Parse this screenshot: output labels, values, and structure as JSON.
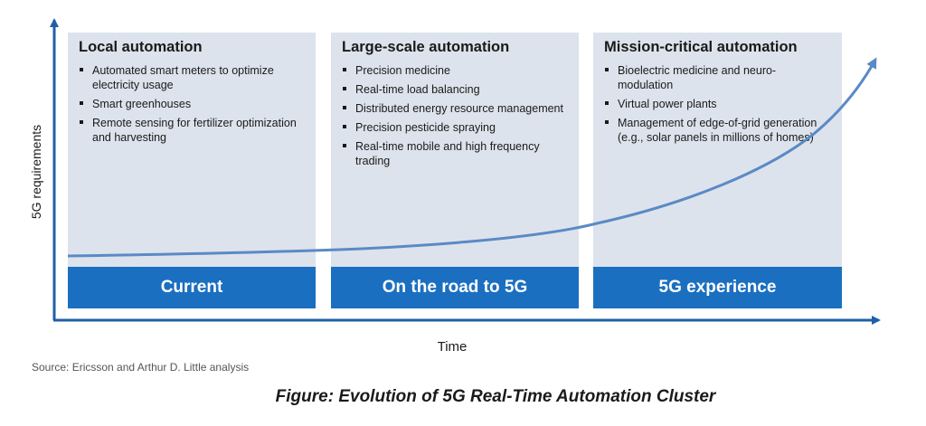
{
  "diagram": {
    "y_axis_label": "5G requirements",
    "x_axis_label": "Time",
    "source": "Source: Ericsson and Arthur D. Little analysis",
    "caption": "Figure: Evolution of 5G Real-Time Automation Cluster",
    "colors": {
      "panel_background": "#dde3ec",
      "stage_band": "#1b6fc0",
      "curve": "#5a8ac6",
      "axes": "#1f5fa6"
    },
    "stages": [
      {
        "band": "Current",
        "title": "Local automation",
        "items": [
          "Automated smart meters to optimize electricity usage",
          "Smart greenhouses",
          "Remote sensing for fertilizer optimization and harvesting"
        ]
      },
      {
        "band": "On the road to 5G",
        "title": "Large-scale automation",
        "items": [
          "Precision medicine",
          "Real-time load balancing",
          "Distributed energy resource management",
          "Precision pesticide spraying",
          "Real-time mobile and high frequency trading"
        ]
      },
      {
        "band": "5G experience",
        "title": "Mission-critical automation",
        "items": [
          "Bioelectric medicine and neuro-modulation",
          "Virtual power plants",
          "Management of edge-of-grid generation (e.g., solar panels in millions of homes)"
        ]
      }
    ]
  }
}
